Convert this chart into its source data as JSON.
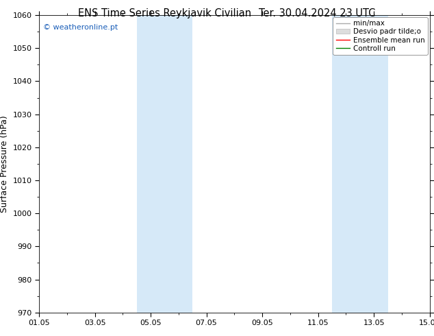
{
  "title_left": "ENS Time Series Reykjavik Civilian",
  "title_right": "Ter. 30.04.2024 23 UTC",
  "ylabel": "Surface Pressure (hPa)",
  "ylim": [
    970,
    1060
  ],
  "yticks": [
    970,
    980,
    990,
    1000,
    1010,
    1020,
    1030,
    1040,
    1050,
    1060
  ],
  "xlim_start": 0,
  "xlim_end": 14,
  "xtick_positions": [
    0,
    2,
    4,
    6,
    8,
    10,
    12,
    14
  ],
  "xtick_labels": [
    "01.05",
    "03.05",
    "05.05",
    "07.05",
    "09.05",
    "11.05",
    "13.05",
    "15.05"
  ],
  "shade_bands": [
    {
      "xmin": 3.5,
      "xmax": 5.5
    },
    {
      "xmin": 10.5,
      "xmax": 12.5
    }
  ],
  "shade_color": "#d6e9f8",
  "watermark": "© weatheronline.pt",
  "watermark_color": "#1a5eb8",
  "legend_labels": [
    "min/max",
    "Desvio padr tilde;o",
    "Ensemble mean run",
    "Controll run"
  ],
  "legend_colors": [
    "#aaaaaa",
    "#cccccc",
    "#ff0000",
    "#008000"
  ],
  "background_color": "#ffffff",
  "title_fontsize": 10.5,
  "ylabel_fontsize": 9,
  "tick_fontsize": 8,
  "legend_fontsize": 7.5,
  "watermark_fontsize": 8
}
